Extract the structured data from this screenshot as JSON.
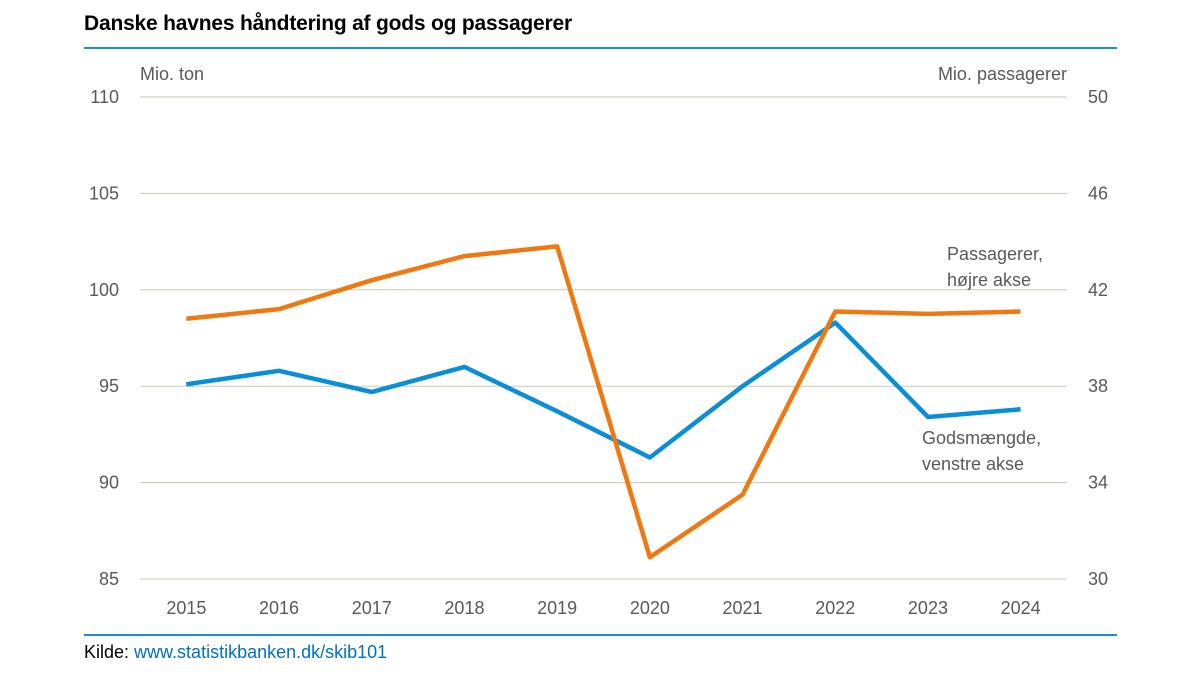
{
  "title": "Danske havnes håndtering af gods og passagerer",
  "source": {
    "label": "Kilde:",
    "url": "www.statistikbanken.dk/skib101"
  },
  "colors": {
    "accent_rule": "#1a8fd0",
    "gods": "#0a8ed8",
    "passagerer": "#f07810",
    "grid": "#c9c9b8"
  },
  "chart_data": {
    "type": "line",
    "categories": [
      "2015",
      "2016",
      "2017",
      "2018",
      "2019",
      "2020",
      "2021",
      "2022",
      "2023",
      "2024"
    ],
    "y_left": {
      "unit": "Mio. ton",
      "ylim": [
        85,
        110
      ],
      "ticks": [
        "85",
        "90",
        "95",
        "100",
        "105",
        "110"
      ]
    },
    "y_right": {
      "unit": "Mio. passagerer",
      "ylim": [
        30,
        50
      ],
      "ticks": [
        "30",
        "34",
        "38",
        "42",
        "46",
        "50"
      ]
    },
    "grid": true,
    "series": [
      {
        "name": "Godsmængde, venstre akse",
        "label_lines": [
          "Godsmængde,",
          "venstre akse"
        ],
        "axis": "left",
        "color": "#0a8ed8",
        "values": [
          95.1,
          95.8,
          94.7,
          96.0,
          93.7,
          91.3,
          95.0,
          98.3,
          93.4,
          93.8
        ]
      },
      {
        "name": "Passagerer, højre akse",
        "label_lines": [
          "Passagerer,",
          "højre akse"
        ],
        "axis": "right",
        "color": "#f07810",
        "values": [
          40.8,
          41.2,
          42.4,
          43.4,
          43.8,
          30.9,
          33.5,
          41.1,
          41.0,
          41.1
        ]
      }
    ]
  }
}
